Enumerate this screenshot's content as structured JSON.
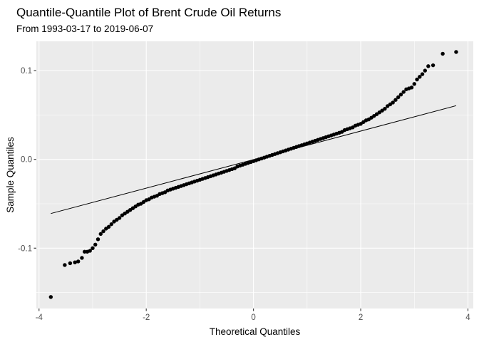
{
  "chart_data": {
    "type": "scatter",
    "title": "Quantile-Quantile Plot of Brent Crude Oil Returns",
    "subtitle": "From 1993-03-17 to 2019-06-07",
    "xlabel": "Theoretical Quantiles",
    "ylabel": "Sample Quantiles",
    "xlim": [
      -4.05,
      4.1
    ],
    "ylim": [
      -0.168,
      0.133
    ],
    "x_ticks": [
      -4,
      -2,
      0,
      2,
      4
    ],
    "x_tick_labels": [
      "-4",
      "-2",
      "0",
      "2",
      "4"
    ],
    "y_ticks": [
      -0.1,
      0.0,
      0.1
    ],
    "y_tick_labels": [
      "-0.1",
      "0.0",
      "0.1"
    ],
    "grid": true,
    "background": "#ebebeb",
    "point_color": "#000000",
    "reference_line": {
      "x": [
        -3.78,
        3.78
      ],
      "y": [
        -0.061,
        0.0605
      ]
    },
    "series": [
      {
        "points": [
          [
            -3.78,
            -0.155
          ],
          [
            -3.52,
            -0.119
          ],
          [
            -3.42,
            -0.117
          ],
          [
            -3.33,
            -0.116
          ],
          [
            -3.27,
            -0.115
          ],
          [
            -3.2,
            -0.111
          ],
          [
            -3.15,
            -0.104
          ],
          [
            -3.1,
            -0.104
          ],
          [
            -3.05,
            -0.103
          ],
          [
            -3.0,
            -0.1
          ],
          [
            -2.95,
            -0.096
          ],
          [
            -2.9,
            -0.09
          ],
          [
            -2.85,
            -0.084
          ],
          [
            -2.8,
            -0.081
          ],
          [
            -2.75,
            -0.078
          ],
          [
            -2.7,
            -0.076
          ],
          [
            -2.65,
            -0.073
          ],
          [
            -2.6,
            -0.07
          ],
          [
            -2.55,
            -0.068
          ],
          [
            -2.5,
            -0.066
          ],
          [
            -2.45,
            -0.063
          ],
          [
            -2.4,
            -0.061
          ],
          [
            -2.35,
            -0.059
          ],
          [
            -2.3,
            -0.057
          ],
          [
            -2.25,
            -0.055
          ],
          [
            -2.2,
            -0.053
          ],
          [
            -2.15,
            -0.051
          ],
          [
            -2.1,
            -0.05
          ],
          [
            -2.05,
            -0.048
          ],
          [
            -2.0,
            -0.046
          ],
          [
            -1.95,
            -0.045
          ],
          [
            -1.9,
            -0.043
          ],
          [
            -1.85,
            -0.042
          ],
          [
            -1.8,
            -0.041
          ],
          [
            -1.75,
            -0.039
          ],
          [
            -1.7,
            -0.038
          ],
          [
            -1.65,
            -0.037
          ],
          [
            -1.6,
            -0.035
          ],
          [
            -1.55,
            -0.034
          ],
          [
            -1.5,
            -0.033
          ],
          [
            -1.45,
            -0.032
          ],
          [
            -1.4,
            -0.031
          ],
          [
            -1.35,
            -0.03
          ],
          [
            -1.3,
            -0.029
          ],
          [
            -1.25,
            -0.028
          ],
          [
            -1.2,
            -0.027
          ],
          [
            -1.15,
            -0.026
          ],
          [
            -1.1,
            -0.025
          ],
          [
            -1.05,
            -0.024
          ],
          [
            -1.0,
            -0.023
          ],
          [
            -0.95,
            -0.022
          ],
          [
            -0.9,
            -0.021
          ],
          [
            -0.85,
            -0.02
          ],
          [
            -0.8,
            -0.019
          ],
          [
            -0.75,
            -0.018
          ],
          [
            -0.7,
            -0.017
          ],
          [
            -0.65,
            -0.016
          ],
          [
            -0.6,
            -0.015
          ],
          [
            -0.55,
            -0.014
          ],
          [
            -0.5,
            -0.013
          ],
          [
            -0.45,
            -0.012
          ],
          [
            -0.4,
            -0.011
          ],
          [
            -0.35,
            -0.01
          ],
          [
            -0.3,
            -0.008
          ],
          [
            -0.25,
            -0.007
          ],
          [
            -0.2,
            -0.006
          ],
          [
            -0.15,
            -0.005
          ],
          [
            -0.1,
            -0.004
          ],
          [
            -0.05,
            -0.003
          ],
          [
            0.0,
            -0.002
          ],
          [
            0.05,
            -0.001
          ],
          [
            0.1,
            0.0
          ],
          [
            0.15,
            0.001
          ],
          [
            0.2,
            0.002
          ],
          [
            0.25,
            0.003
          ],
          [
            0.3,
            0.004
          ],
          [
            0.35,
            0.005
          ],
          [
            0.4,
            0.006
          ],
          [
            0.45,
            0.007
          ],
          [
            0.5,
            0.008
          ],
          [
            0.55,
            0.009
          ],
          [
            0.6,
            0.01
          ],
          [
            0.65,
            0.011
          ],
          [
            0.7,
            0.012
          ],
          [
            0.75,
            0.013
          ],
          [
            0.8,
            0.014
          ],
          [
            0.85,
            0.015
          ],
          [
            0.9,
            0.016
          ],
          [
            0.95,
            0.017
          ],
          [
            1.0,
            0.018
          ],
          [
            1.05,
            0.019
          ],
          [
            1.1,
            0.02
          ],
          [
            1.15,
            0.021
          ],
          [
            1.2,
            0.022
          ],
          [
            1.25,
            0.023
          ],
          [
            1.3,
            0.024
          ],
          [
            1.35,
            0.025
          ],
          [
            1.4,
            0.026
          ],
          [
            1.45,
            0.027
          ],
          [
            1.5,
            0.028
          ],
          [
            1.55,
            0.029
          ],
          [
            1.6,
            0.03
          ],
          [
            1.65,
            0.031
          ],
          [
            1.7,
            0.033
          ],
          [
            1.75,
            0.034
          ],
          [
            1.8,
            0.035
          ],
          [
            1.85,
            0.036
          ],
          [
            1.9,
            0.038
          ],
          [
            1.95,
            0.039
          ],
          [
            2.0,
            0.04
          ],
          [
            2.05,
            0.042
          ],
          [
            2.1,
            0.044
          ],
          [
            2.15,
            0.045
          ],
          [
            2.2,
            0.047
          ],
          [
            2.25,
            0.049
          ],
          [
            2.3,
            0.051
          ],
          [
            2.35,
            0.053
          ],
          [
            2.4,
            0.055
          ],
          [
            2.45,
            0.057
          ],
          [
            2.5,
            0.06
          ],
          [
            2.55,
            0.062
          ],
          [
            2.6,
            0.064
          ],
          [
            2.65,
            0.067
          ],
          [
            2.7,
            0.07
          ],
          [
            2.75,
            0.073
          ],
          [
            2.8,
            0.076
          ],
          [
            2.85,
            0.079
          ],
          [
            2.9,
            0.08
          ],
          [
            2.95,
            0.081
          ],
          [
            3.0,
            0.085
          ],
          [
            3.05,
            0.09
          ],
          [
            3.1,
            0.093
          ],
          [
            3.15,
            0.096
          ],
          [
            3.2,
            0.1
          ],
          [
            3.26,
            0.105
          ],
          [
            3.35,
            0.106
          ],
          [
            3.53,
            0.119
          ],
          [
            3.78,
            0.121
          ]
        ]
      }
    ]
  }
}
